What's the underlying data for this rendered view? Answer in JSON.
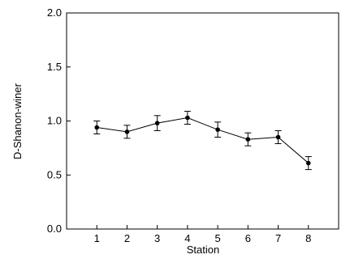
{
  "chart_data": {
    "type": "line",
    "title": "",
    "xlabel": "Station",
    "ylabel": "D-Shanon-winer",
    "x": [
      1,
      2,
      3,
      4,
      5,
      6,
      7,
      8
    ],
    "x_tick_labels": [
      "1",
      "2",
      "3",
      "4",
      "5",
      "6",
      "7",
      "8"
    ],
    "xlim": [
      0,
      9
    ],
    "ylim": [
      0.0,
      2.0
    ],
    "y_ticks": [
      0.0,
      0.5,
      1.0,
      1.5,
      2.0
    ],
    "y_tick_labels": [
      "0.0",
      "0.5",
      "1.0",
      "1.5",
      "2.0"
    ],
    "grid": false,
    "series": [
      {
        "values": [
          0.94,
          0.9,
          0.98,
          1.03,
          0.92,
          0.83,
          0.85,
          0.61
        ],
        "error": [
          0.06,
          0.06,
          0.07,
          0.06,
          0.07,
          0.06,
          0.06,
          0.06
        ],
        "color": "#000000",
        "marker": "circle"
      }
    ]
  }
}
